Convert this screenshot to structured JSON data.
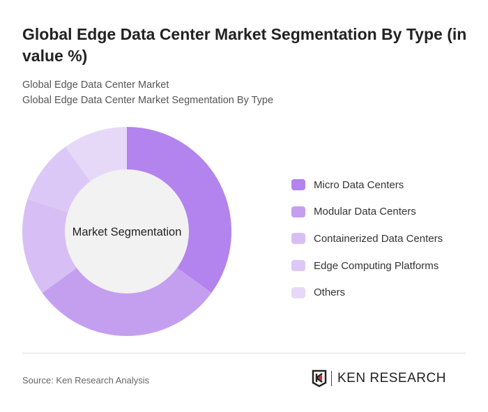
{
  "title": "Global Edge Data Center Market Segmentation By Type (in value %)",
  "subtitle1": "Global Edge Data Center Market",
  "subtitle2": "Global Edge Data Center Market Segmentation By Type",
  "source": "Source: Ken Research Analysis",
  "logo_text": "KEN RESEARCH",
  "chart_data": {
    "type": "pie",
    "donut": true,
    "center_label": "Market Segmentation",
    "categories": [
      "Micro Data Centers",
      "Modular Data Centers",
      "Containerized Data Centers",
      "Edge Computing Platforms",
      "Others"
    ],
    "values": [
      35,
      30,
      15,
      10,
      10
    ],
    "colors": [
      "#b383ee",
      "#c49ff0",
      "#d7bff5",
      "#dcc8f6",
      "#e6d9f8"
    ],
    "legend_position": "right"
  }
}
